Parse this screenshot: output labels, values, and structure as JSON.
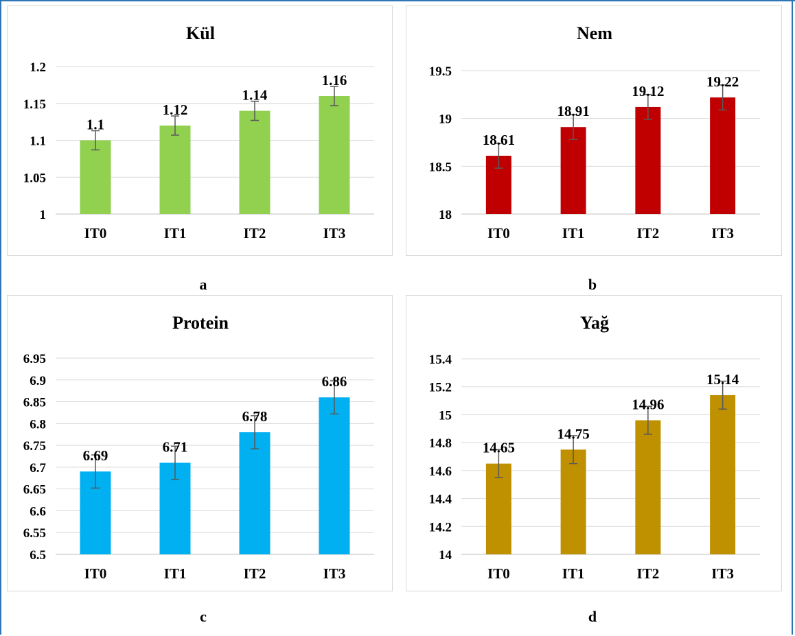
{
  "chart_data": [
    {
      "type": "bar",
      "title": "Kül",
      "categories": [
        "IT0",
        "IT1",
        "IT2",
        "IT3"
      ],
      "values": [
        1.1,
        1.12,
        1.14,
        1.16
      ],
      "value_labels": [
        "1.1",
        "1.12",
        "1.14",
        "1.16"
      ],
      "errors": [
        0.013,
        0.013,
        0.013,
        0.013
      ],
      "ylim": [
        1,
        1.2
      ],
      "yticks": [
        "1",
        "1.05",
        "1.1",
        "1.15",
        "1.2"
      ],
      "ytick_values": [
        1,
        1.05,
        1.1,
        1.15,
        1.2
      ],
      "color": "#92d050",
      "grid": true,
      "panel_label": "a"
    },
    {
      "type": "bar",
      "title": "Nem",
      "categories": [
        "IT0",
        "IT1",
        "IT2",
        "IT3"
      ],
      "values": [
        18.61,
        18.91,
        19.12,
        19.22
      ],
      "value_labels": [
        "18.61",
        "18.91",
        "19.12",
        "19.22"
      ],
      "errors": [
        0.13,
        0.13,
        0.13,
        0.13
      ],
      "ylim": [
        18,
        19.5
      ],
      "yticks": [
        "18",
        "18.5",
        "19",
        "19.5"
      ],
      "ytick_values": [
        18,
        18.5,
        19,
        19.5
      ],
      "color": "#c00000",
      "grid": true,
      "panel_label": "b"
    },
    {
      "type": "bar",
      "title": "Protein",
      "categories": [
        "IT0",
        "IT1",
        "IT2",
        "IT3"
      ],
      "values": [
        6.69,
        6.71,
        6.78,
        6.86
      ],
      "value_labels": [
        "6.69",
        "6.71",
        "6.78",
        "6.86"
      ],
      "errors": [
        0.038,
        0.038,
        0.038,
        0.038
      ],
      "ylim": [
        6.5,
        6.95
      ],
      "yticks": [
        "6.5",
        "6.55",
        "6.6",
        "6.65",
        "6.7",
        "6.75",
        "6.8",
        "6.85",
        "6.9",
        "6.95"
      ],
      "ytick_values": [
        6.5,
        6.55,
        6.6,
        6.65,
        6.7,
        6.75,
        6.8,
        6.85,
        6.9,
        6.95
      ],
      "color": "#00b0f0",
      "grid": true,
      "panel_label": "c"
    },
    {
      "type": "bar",
      "title": "Yağ",
      "categories": [
        "IT0",
        "IT1",
        "IT2",
        "IT3"
      ],
      "values": [
        14.65,
        14.75,
        14.96,
        15.14
      ],
      "value_labels": [
        "14.65",
        "14.75",
        "14.96",
        "15.14"
      ],
      "errors": [
        0.1,
        0.1,
        0.1,
        0.1
      ],
      "ylim": [
        14,
        15.4
      ],
      "yticks": [
        "14",
        "14.2",
        "14.4",
        "14.6",
        "14.8",
        "15",
        "15.2",
        "15.4"
      ],
      "ytick_values": [
        14,
        14.2,
        14.4,
        14.6,
        14.8,
        15,
        15.2,
        15.4
      ],
      "color": "#bf9000",
      "grid": true,
      "panel_label": "d"
    }
  ]
}
